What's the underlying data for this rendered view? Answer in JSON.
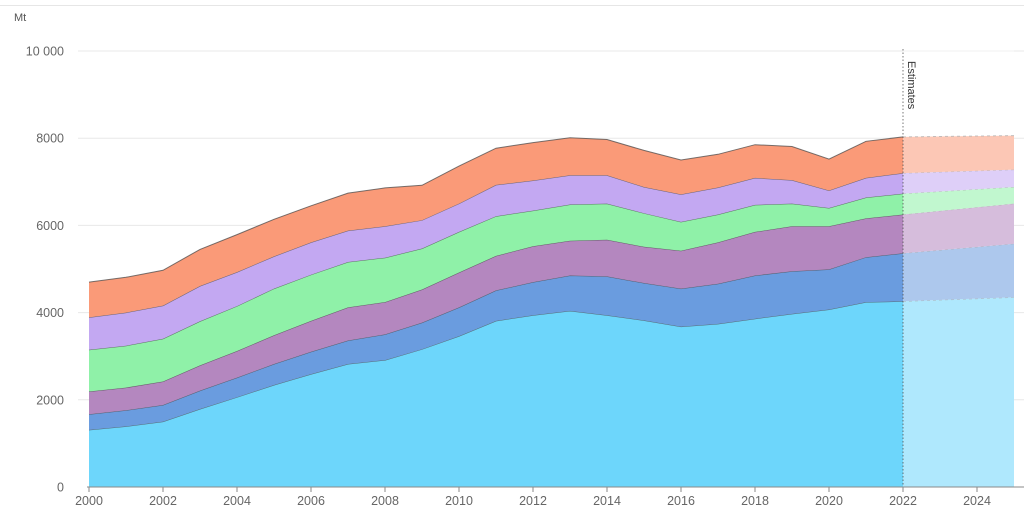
{
  "chart_data": {
    "type": "area",
    "stacked": true,
    "unit_label": "Mt",
    "annotation": "Estimates",
    "estimate_from": 2022,
    "x": [
      2000,
      2001,
      2002,
      2003,
      2004,
      2005,
      2006,
      2007,
      2008,
      2009,
      2010,
      2011,
      2012,
      2013,
      2014,
      2015,
      2016,
      2017,
      2018,
      2019,
      2020,
      2021,
      2022,
      2025
    ],
    "x_ticks": [
      "2000",
      "2002",
      "2004",
      "2006",
      "2008",
      "2010",
      "2012",
      "2014",
      "2016",
      "2018",
      "2020",
      "2022",
      "2024"
    ],
    "xlim": [
      2000,
      2025
    ],
    "y_ticks": [
      "0",
      "2000",
      "4000",
      "6000",
      "8000",
      "10 000"
    ],
    "ylim": [
      0,
      10000
    ],
    "grid": true,
    "series": [
      {
        "color": "#6dd6fb",
        "values": [
          1310,
          1390,
          1500,
          1790,
          2060,
          2340,
          2590,
          2820,
          2910,
          3160,
          3460,
          3810,
          3940,
          4040,
          3940,
          3820,
          3680,
          3740,
          3860,
          3970,
          4070,
          4240,
          4260,
          4350
        ]
      },
      {
        "color": "#6a9cdf",
        "values": [
          360,
          370,
          380,
          420,
          450,
          480,
          510,
          540,
          590,
          610,
          660,
          700,
          760,
          810,
          890,
          860,
          870,
          920,
          990,
          980,
          920,
          1030,
          1100,
          1230
        ]
      },
      {
        "color": "#b487bf",
        "values": [
          520,
          520,
          540,
          580,
          610,
          660,
          710,
          760,
          740,
          760,
          800,
          790,
          820,
          800,
          840,
          830,
          870,
          950,
          1000,
          1030,
          990,
          890,
          890,
          920
        ]
      },
      {
        "color": "#8ff1a8",
        "values": [
          960,
          960,
          980,
          1010,
          1030,
          1070,
          1060,
          1040,
          1020,
          940,
          930,
          910,
          820,
          830,
          830,
          770,
          660,
          640,
          620,
          520,
          420,
          480,
          480,
          380
        ]
      },
      {
        "color": "#c3a8f2",
        "values": [
          740,
          760,
          760,
          810,
          780,
          740,
          740,
          720,
          720,
          650,
          650,
          720,
          690,
          670,
          650,
          600,
          630,
          620,
          620,
          540,
          400,
          450,
          470,
          400
        ]
      },
      {
        "color": "#fa9a78",
        "values": [
          810,
          810,
          810,
          840,
          860,
          850,
          840,
          860,
          880,
          800,
          860,
          840,
          870,
          860,
          820,
          840,
          790,
          760,
          760,
          770,
          720,
          840,
          830,
          780
        ]
      }
    ]
  }
}
